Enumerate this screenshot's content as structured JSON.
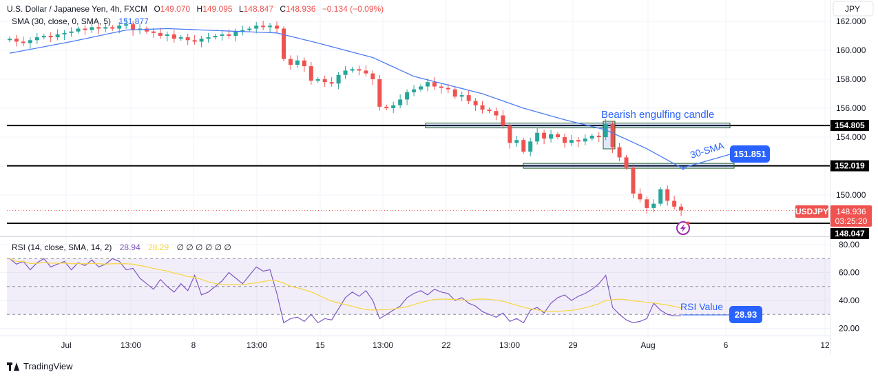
{
  "header": {
    "title": "U.S. Dollar / Japanese Yen, 4h, FXCM",
    "open_label": "O",
    "open": "149.070",
    "high_label": "H",
    "high": "149.095",
    "low_label": "L",
    "low": "148.847",
    "close_label": "C",
    "close": "148.936",
    "change": "−0.134 (−0.09%)",
    "sma_legend": "SMA (30, close, 0, SMA, 5)",
    "sma_value": "151.877"
  },
  "currency_button": "JPY",
  "price_axis": {
    "ticks": [
      "162.000",
      "160.000",
      "158.000",
      "156.000",
      "154.000",
      "150.000"
    ],
    "tick_values": [
      162,
      160,
      158,
      156,
      154,
      150
    ],
    "levels": [
      {
        "label": "154.805",
        "value": 154.805
      },
      {
        "label": "152.019",
        "value": 152.019
      },
      {
        "label": "148.047",
        "value": 148.047
      }
    ],
    "symbol_tag": "USDJPY",
    "last_price": "148.936",
    "countdown": "03:25:20"
  },
  "annotations": {
    "bearish": "Bearish engulfing candle",
    "sma_label": "30-SMA",
    "sma_box": "151.851",
    "rsi_label": "RSI Value",
    "rsi_box": "28.93"
  },
  "rsi": {
    "legend": "RSI (14, close, SMA, 14, 2)",
    "value": "28.94",
    "ma_value": "28.29",
    "empty_values": [
      "∅",
      "∅",
      "∅",
      "∅",
      "∅",
      "∅"
    ],
    "ticks": [
      "80.00",
      "60.00",
      "40.00",
      "20.00"
    ],
    "tick_values": [
      80,
      60,
      40,
      20
    ]
  },
  "time_axis": [
    "Jul",
    "13:00",
    "8",
    "13:00",
    "15",
    "13:00",
    "22",
    "13:00",
    "29",
    "Aug",
    "6",
    "12"
  ],
  "footer": {
    "brand": "TradingView"
  },
  "colors": {
    "up": "#26a69a",
    "down": "#ef5350",
    "sma": "#4c7cf3",
    "rsi": "#7e57c2",
    "rsi_ma": "#f7d63c",
    "annotation": "#2962ff"
  },
  "chart_data": {
    "type": "candlestick",
    "symbol": "USDJPY",
    "interval": "4h",
    "ylim": [
      147.6,
      162.2
    ],
    "closes": [
      160.8,
      160.6,
      160.5,
      160.7,
      160.9,
      161.0,
      160.9,
      161.1,
      161.2,
      161.3,
      161.5,
      161.4,
      161.6,
      161.5,
      161.6,
      161.5,
      161.7,
      161.8,
      161.4,
      161.5,
      161.3,
      161.2,
      161.0,
      161.1,
      160.8,
      160.9,
      160.7,
      160.6,
      160.8,
      160.9,
      161.0,
      161.1,
      161.0,
      161.3,
      161.4,
      161.5,
      161.7,
      161.6,
      161.7,
      161.5,
      159.4,
      159.0,
      159.3,
      158.9,
      157.9,
      158.0,
      157.8,
      157.7,
      158.3,
      158.6,
      158.7,
      158.6,
      158.4,
      158.0,
      156.1,
      156.0,
      156.2,
      156.6,
      157.1,
      157.3,
      157.5,
      157.8,
      157.5,
      157.4,
      157.3,
      156.8,
      156.9,
      156.5,
      156.2,
      155.9,
      155.8,
      155.5,
      154.8,
      153.6,
      153.8,
      153.0,
      153.7,
      154.3,
      153.9,
      154.2,
      154.0,
      153.6,
      153.8,
      153.7,
      153.9,
      154.1,
      154.0,
      154.9,
      153.3,
      152.6,
      151.9,
      150.1,
      149.7,
      149.1,
      149.4,
      150.4,
      149.6,
      149.2,
      148.94
    ],
    "sma30": [
      [
        0,
        159.8
      ],
      [
        9,
        160.6
      ],
      [
        17,
        161.4
      ],
      [
        23,
        161.5
      ],
      [
        39,
        161.2
      ],
      [
        45,
        160.5
      ],
      [
        53,
        159.5
      ],
      [
        59,
        158.2
      ],
      [
        64,
        157.6
      ],
      [
        69,
        157.0
      ],
      [
        75,
        156.0
      ],
      [
        81,
        155.2
      ],
      [
        87,
        154.5
      ],
      [
        93,
        153.2
      ],
      [
        98,
        151.9
      ]
    ],
    "rsi": [
      70,
      66,
      68,
      62,
      67,
      70,
      64,
      66,
      68,
      62,
      67,
      65,
      69,
      64,
      66,
      70,
      68,
      62,
      63,
      56,
      52,
      48,
      55,
      50,
      46,
      52,
      47,
      58,
      44,
      46,
      50,
      54,
      60,
      56,
      52,
      58,
      64,
      61,
      62,
      45,
      24,
      27,
      28,
      25,
      30,
      24,
      27,
      26,
      34,
      42,
      46,
      43,
      47,
      40,
      27,
      30,
      33,
      36,
      42,
      45,
      47,
      44,
      48,
      46,
      45,
      40,
      42,
      38,
      36,
      32,
      30,
      28,
      31,
      25,
      27,
      24,
      33,
      35,
      31,
      38,
      42,
      44,
      40,
      43,
      45,
      48,
      52,
      58,
      35,
      30,
      26,
      24,
      25,
      27,
      38,
      33,
      30,
      29,
      28.94
    ],
    "rsi_ylim": [
      14,
      88
    ],
    "rsi_band": [
      30,
      70
    ],
    "x_labels": [
      "Jul",
      "13:00",
      "8",
      "13:00",
      "15",
      "13:00",
      "22",
      "13:00",
      "29",
      "Aug",
      "6",
      "12"
    ]
  }
}
